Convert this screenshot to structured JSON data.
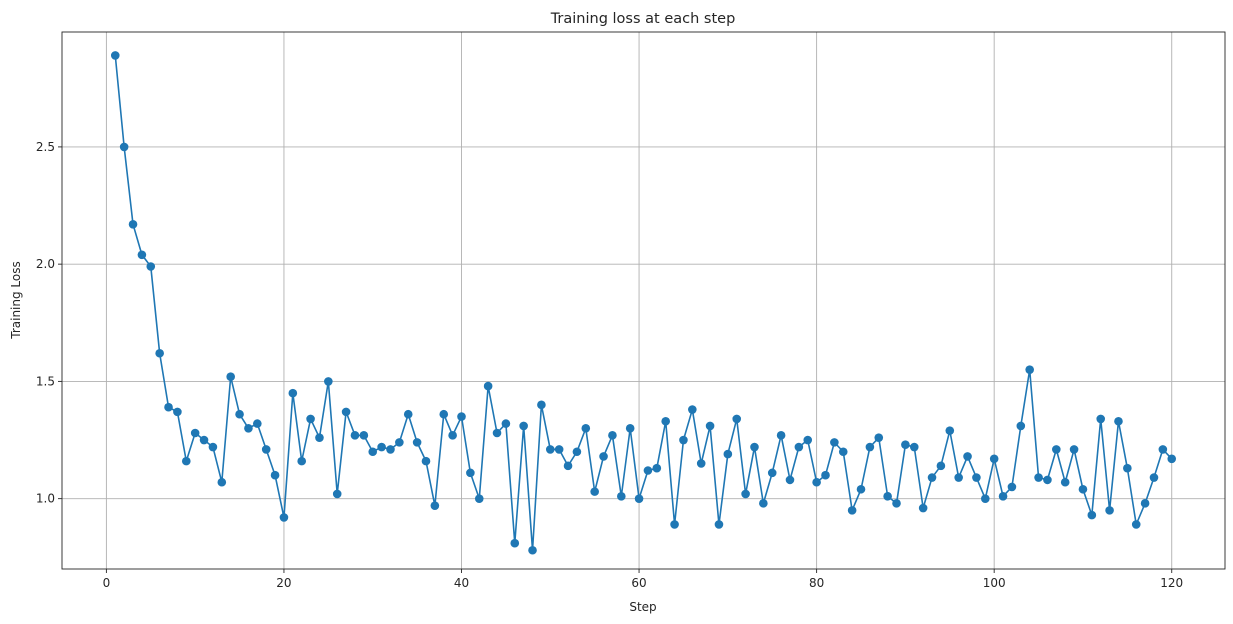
{
  "chart_data": {
    "type": "line",
    "title": "Training loss at each step",
    "xlabel": "Step",
    "ylabel": "Training Loss",
    "xlim": [
      -5,
      126
    ],
    "ylim": [
      0.7,
      2.99
    ],
    "xticks": [
      0,
      20,
      40,
      60,
      80,
      100,
      120
    ],
    "yticks": [
      1.0,
      1.5,
      2.0,
      2.5
    ],
    "ytick_labels": [
      "1.0",
      "1.5",
      "2.0",
      "2.5"
    ],
    "grid": true,
    "color": "#1f77b4",
    "markers": "circle",
    "series": [
      {
        "x": [
          1,
          2,
          3,
          4,
          5,
          6,
          7,
          8,
          9,
          10,
          11,
          12,
          13,
          14,
          15,
          16,
          17,
          18,
          19,
          20,
          21,
          22,
          23,
          24,
          25,
          26,
          27,
          28,
          29,
          30,
          31,
          32,
          33,
          34,
          35,
          36,
          37,
          38,
          39,
          40,
          41,
          42,
          43,
          44,
          45,
          46,
          47,
          48,
          49,
          50,
          51,
          52,
          53,
          54,
          55,
          56,
          57,
          58,
          59,
          60,
          61,
          62,
          63,
          64,
          65,
          66,
          67,
          68,
          69,
          70,
          71,
          72,
          73,
          74,
          75,
          76,
          77,
          78,
          79,
          80,
          81,
          82,
          83,
          84,
          85,
          86,
          87,
          88,
          89,
          90,
          91,
          92,
          93,
          94,
          95,
          96,
          97,
          98,
          99,
          100,
          101,
          102,
          103,
          104,
          105,
          106,
          107,
          108,
          109,
          110,
          111,
          112,
          113,
          114,
          115,
          116,
          117,
          118,
          119,
          120
        ],
        "y": [
          2.89,
          2.5,
          2.17,
          2.04,
          1.99,
          1.62,
          1.39,
          1.37,
          1.16,
          1.28,
          1.25,
          1.22,
          1.07,
          1.52,
          1.36,
          1.3,
          1.32,
          1.21,
          1.1,
          0.92,
          1.45,
          1.16,
          1.34,
          1.26,
          1.5,
          1.02,
          1.37,
          1.27,
          1.27,
          1.2,
          1.22,
          1.21,
          1.24,
          1.36,
          1.24,
          1.16,
          0.97,
          1.36,
          1.27,
          1.35,
          1.11,
          1.0,
          1.48,
          1.28,
          1.32,
          0.81,
          1.31,
          0.78,
          1.4,
          1.21,
          1.21,
          1.14,
          1.2,
          1.3,
          1.03,
          1.18,
          1.27,
          1.01,
          1.3,
          1.0,
          1.12,
          1.13,
          1.33,
          0.89,
          1.25,
          1.38,
          1.15,
          1.31,
          0.89,
          1.19,
          1.34,
          1.02,
          1.22,
          0.98,
          1.11,
          1.27,
          1.08,
          1.22,
          1.25,
          1.07,
          1.1,
          1.24,
          1.2,
          0.95,
          1.04,
          1.22,
          1.26,
          1.01,
          0.98,
          1.23,
          1.22,
          0.96,
          1.09,
          1.14,
          1.29,
          1.09,
          1.18,
          1.09,
          1.0,
          1.17,
          1.01,
          1.05,
          1.31,
          1.55,
          1.09,
          1.08,
          1.21,
          1.07,
          1.21,
          1.04,
          0.93,
          1.34,
          0.95,
          1.33,
          1.13,
          0.89,
          0.98,
          1.09,
          1.21,
          1.17
        ]
      }
    ]
  }
}
